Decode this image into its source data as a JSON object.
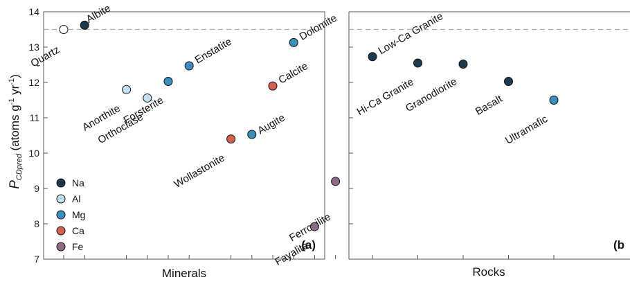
{
  "chart_data": [
    {
      "type": "scatter",
      "panel_label": "(a)",
      "xlabel": "Minerals",
      "ylabel": {
        "main": "P",
        "sub": "CDpred",
        "unit_prefix": " (atoms g",
        "exp1": "-1",
        "unit_mid": " yr",
        "exp2": "-1",
        "unit_suffix": ")"
      },
      "ylim": [
        7,
        14
      ],
      "yticks": [
        7,
        8,
        9,
        10,
        11,
        12,
        13,
        14
      ],
      "reference_line_y": 13.5,
      "grid": false,
      "legend_position": "bottom-left",
      "legend": [
        {
          "label": "Na",
          "color": "#1b3a4b"
        },
        {
          "label": "Al",
          "color": "#c2dff3"
        },
        {
          "label": "Mg",
          "color": "#3a8fbd"
        },
        {
          "label": "Ca",
          "color": "#d35f4f"
        },
        {
          "label": "Fe",
          "color": "#8e6c88"
        }
      ],
      "points": [
        {
          "name": "Quartz",
          "x": 1,
          "y": 13.5,
          "color": "#ffffff"
        },
        {
          "name": "Albite",
          "x": 2,
          "y": 13.62,
          "color": "#1b3a4b"
        },
        {
          "name": "Anorthite",
          "x": 4,
          "y": 11.8,
          "color": "#c2dff3"
        },
        {
          "name": "Orthoclase",
          "x": 5,
          "y": 11.56,
          "color": "#c2dff3"
        },
        {
          "name": "Forsterite",
          "x": 6,
          "y": 12.03,
          "color": "#3a8fbd"
        },
        {
          "name": "Enstatite",
          "x": 7,
          "y": 12.47,
          "color": "#3a8fbd"
        },
        {
          "name": "Wollastonite",
          "x": 9,
          "y": 10.4,
          "color": "#d35f4f"
        },
        {
          "name": "Augite",
          "x": 10,
          "y": 10.53,
          "color": "#3a8fbd"
        },
        {
          "name": "Calcite",
          "x": 11,
          "y": 11.9,
          "color": "#d35f4f"
        },
        {
          "name": "Dolomite",
          "x": 12,
          "y": 13.13,
          "color": "#3a8fbd"
        },
        {
          "name": "Fayalite",
          "x": 13,
          "y": 7.92,
          "color": "#8e6c88"
        },
        {
          "name": "Ferrosilite",
          "x": 14,
          "y": 9.2,
          "color": "#8e6c88"
        }
      ]
    },
    {
      "type": "scatter",
      "panel_label": "(b",
      "xlabel": "Rocks",
      "reference_line_y": 13.5,
      "grid": false,
      "points": [
        {
          "name": "Low-Ca Granite",
          "x": 1,
          "y": 12.73,
          "color": "#1b3a4b"
        },
        {
          "name": "Hi-Ca Granite",
          "x": 2,
          "y": 12.55,
          "color": "#1b3a4b"
        },
        {
          "name": "Granodiorite",
          "x": 3,
          "y": 12.52,
          "color": "#1b3a4b"
        },
        {
          "name": "Basalt",
          "x": 4,
          "y": 12.03,
          "color": "#1b3a4b"
        },
        {
          "name": "Ultramafic",
          "x": 5,
          "y": 11.5,
          "color": "#3a8fbd"
        }
      ]
    }
  ]
}
